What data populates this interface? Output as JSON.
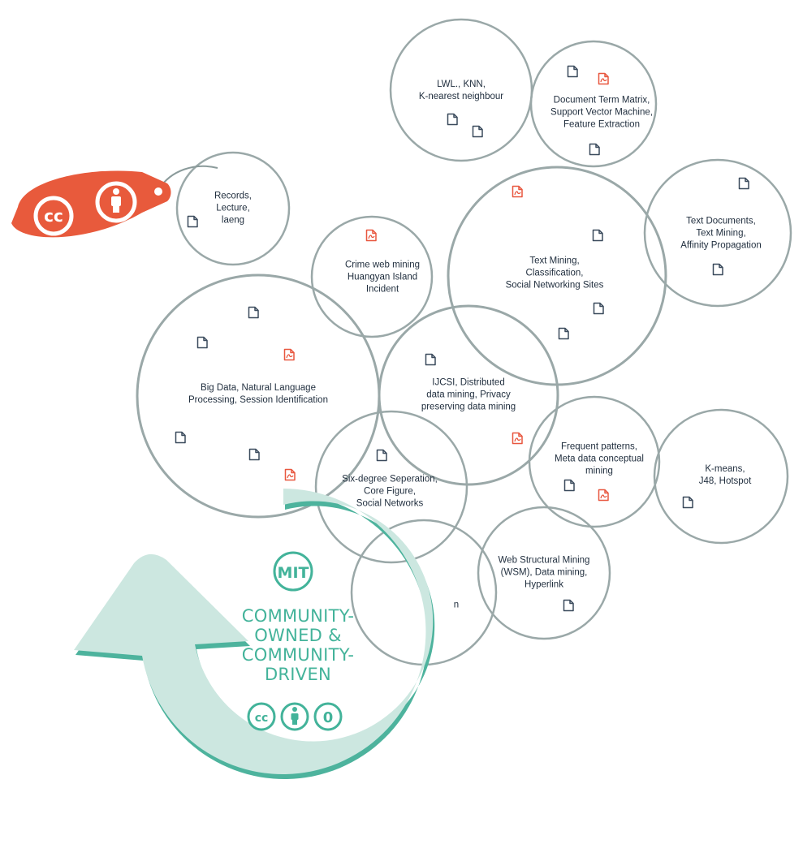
{
  "colors": {
    "circle_stroke": "#9aa8a8",
    "doc_icon": "#3a4a5c",
    "pdf_icon": "#e8573f",
    "cc_tag": "#e85a3c",
    "arrow_fill": "#cce7e0",
    "arrow_edge": "#4db39d",
    "mit_green": "#43b39a"
  },
  "circles": [
    {
      "id": "knn",
      "lines": [
        "LWL., KNN,",
        "K-nearest neighbour"
      ]
    },
    {
      "id": "svm",
      "lines": [
        "Document Term Matrix,",
        "Support Vector Machine,",
        "Feature Extraction"
      ]
    },
    {
      "id": "records",
      "lines": [
        "Records,",
        "Lecture,",
        "laeng"
      ]
    },
    {
      "id": "crime",
      "lines": [
        "Crime web mining",
        "Huangyan Island",
        "Incident"
      ]
    },
    {
      "id": "textmining",
      "lines": [
        "Text Mining,",
        "Classification,",
        "Social Networking Sites"
      ]
    },
    {
      "id": "textdocs",
      "lines": [
        "Text Documents,",
        "Text Mining,",
        "Affinity Propagation"
      ]
    },
    {
      "id": "bigdata",
      "lines": [
        "Big Data, Natural Language",
        "Processing, Session Identification"
      ]
    },
    {
      "id": "ijcsi",
      "lines": [
        "IJCSI, Distributed",
        "data mining, Privacy",
        "preserving data mining"
      ]
    },
    {
      "id": "frequent",
      "lines": [
        "Frequent patterns,",
        "Meta data conceptual",
        "mining"
      ]
    },
    {
      "id": "kmeans",
      "lines": [
        "K-means,",
        "J48, Hotspot"
      ]
    },
    {
      "id": "sixdegree",
      "lines": [
        "Six-degree Seperation,",
        "Core Figure,",
        "Social Networks"
      ]
    },
    {
      "id": "wsm",
      "lines": [
        "Web Structural Mining",
        "(WSM), Data mining,",
        "Hyperlink"
      ]
    },
    {
      "id": "hidden",
      "lines": [
        "n"
      ]
    }
  ],
  "central": {
    "mit": "MIT",
    "lines": [
      "COMMUNITY-",
      "OWNED &",
      "COMMUNITY-",
      "DRIVEN"
    ],
    "license_cc": "cc",
    "license_zero": "0"
  },
  "tag": {
    "cc": "cc"
  }
}
